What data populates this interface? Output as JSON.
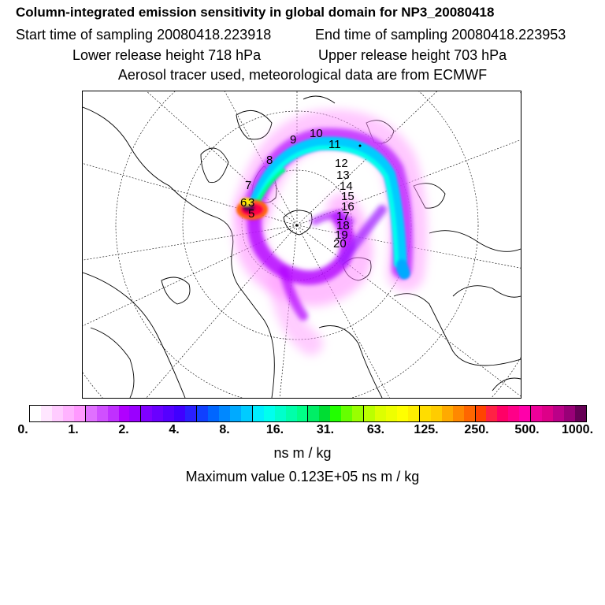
{
  "header": {
    "title": "Column-integrated emission sensitivity in global domain for NP3_20080418",
    "start_label": "Start time of sampling 20080418.223918",
    "end_label": "End time of sampling 20080418.223953",
    "lower_label": "Lower release height  718 hPa",
    "upper_label": "Upper release height  703 hPa",
    "tracer_label": "Aerosol tracer used, meteorological data are from ECMWF"
  },
  "map": {
    "projection": "north-polar-stereographic",
    "plume_colors": {
      "outer": "#ff66ff",
      "mid": "#b000ff",
      "core": "#00d8ff",
      "hot": "#ff0000",
      "peak": "#ffee00"
    },
    "day_labels": [
      "9",
      "10",
      "11",
      "8",
      "12",
      "13",
      "14",
      "7",
      "15",
      "16",
      "6",
      "3",
      "5",
      "17",
      "18",
      "19",
      "20"
    ]
  },
  "colorbar": {
    "colors": [
      "#ffffff",
      "#ffe6ff",
      "#ffccff",
      "#ffb3ff",
      "#ff99ff",
      "#e070ff",
      "#d050ff",
      "#c030ff",
      "#b000ff",
      "#9a00ff",
      "#8000ff",
      "#6a00ff",
      "#5500ff",
      "#4000ff",
      "#2a20ff",
      "#1040ff",
      "#0066ff",
      "#0088ff",
      "#00aaff",
      "#00ccff",
      "#00eeff",
      "#00ffee",
      "#00ffcc",
      "#00ffaa",
      "#00ff88",
      "#00ee66",
      "#00dd33",
      "#22ff00",
      "#66ff00",
      "#99ff00",
      "#bbff00",
      "#ddff00",
      "#eeff00",
      "#ffff00",
      "#ffee00",
      "#ffdd00",
      "#ffcc00",
      "#ffaa00",
      "#ff8800",
      "#ff6600",
      "#ff4400",
      "#ff2244",
      "#ff0066",
      "#ff0088",
      "#ff00aa",
      "#ee0099",
      "#dd0088",
      "#bb0088",
      "#990077",
      "#660055"
    ],
    "ticks": [
      "0.",
      "1.",
      "2.",
      "4.",
      "8.",
      "16.",
      "31.",
      "63.",
      "125.",
      "250.",
      "500.",
      "1000."
    ],
    "units": "ns m / kg",
    "max_label": "Maximum value  0.123E+05 ns m / kg"
  }
}
